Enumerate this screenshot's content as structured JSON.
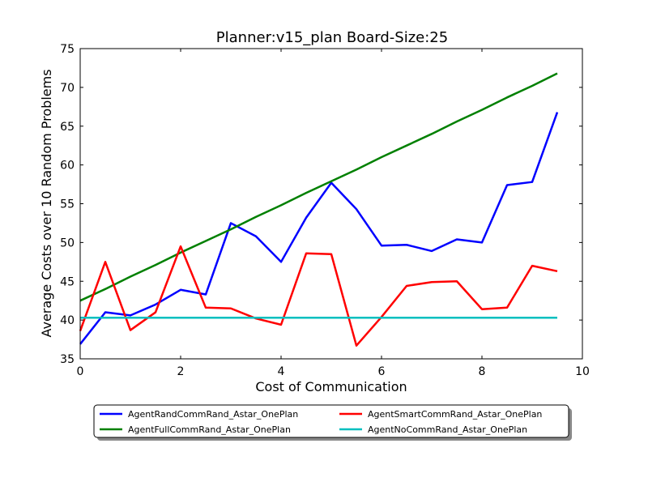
{
  "chart_data": {
    "type": "line",
    "title": "Planner:v15_plan Board-Size:25",
    "xlabel": "Cost of Communication",
    "ylabel": "Average Costs over 10 Random Problems",
    "xlim": [
      0,
      10
    ],
    "ylim": [
      35,
      75
    ],
    "xticks": [
      0,
      2,
      4,
      6,
      8,
      10
    ],
    "yticks": [
      35,
      40,
      45,
      50,
      55,
      60,
      65,
      70,
      75
    ],
    "grid": false,
    "legend_position": "bottom-center",
    "x": [
      0,
      0.5,
      1,
      1.5,
      2,
      2.5,
      3,
      3.5,
      4,
      4.5,
      5,
      5.5,
      6,
      6.5,
      7,
      7.5,
      8,
      8.5,
      9,
      9.5
    ],
    "series": [
      {
        "name": "AgentRandCommRand_Astar_OnePlan",
        "color": "#0000ff",
        "values": [
          36.9,
          41.0,
          40.6,
          42.0,
          43.9,
          43.3,
          52.5,
          50.8,
          47.5,
          53.2,
          57.7,
          54.3,
          49.6,
          49.7,
          48.9,
          50.4,
          50.0,
          57.4,
          57.8,
          66.8
        ]
      },
      {
        "name": "AgentFullCommRand_Astar_OnePlan",
        "color": "#008000",
        "values": [
          42.5,
          44.0,
          45.6,
          47.1,
          48.7,
          50.2,
          51.7,
          53.3,
          54.8,
          56.4,
          57.9,
          59.4,
          61.0,
          62.5,
          64.0,
          65.6,
          67.1,
          68.7,
          70.2,
          71.8
        ]
      },
      {
        "name": "AgentSmartCommRand_Astar_OnePlan",
        "color": "#ff0000",
        "values": [
          38.6,
          47.5,
          38.7,
          41.0,
          49.5,
          41.6,
          41.5,
          40.2,
          39.4,
          48.6,
          48.5,
          36.7,
          40.4,
          44.4,
          44.9,
          45.0,
          41.4,
          41.6,
          47.0,
          46.3
        ]
      },
      {
        "name": "AgentNoCommRand_Astar_OnePlan",
        "color": "#00bfbf",
        "values": [
          40.3,
          40.3,
          40.3,
          40.3,
          40.3,
          40.3,
          40.3,
          40.3,
          40.3,
          40.3,
          40.3,
          40.3,
          40.3,
          40.3,
          40.3,
          40.3,
          40.3,
          40.3,
          40.3,
          40.3
        ]
      }
    ],
    "legend_order": [
      "AgentRandCommRand_Astar_OnePlan",
      "AgentSmartCommRand_Astar_OnePlan",
      "AgentFullCommRand_Astar_OnePlan",
      "AgentNoCommRand_Astar_OnePlan"
    ]
  }
}
